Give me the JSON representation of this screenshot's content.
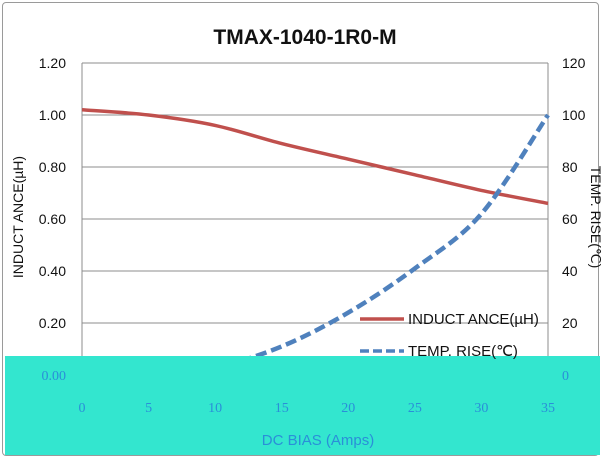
{
  "chart_data": {
    "type": "line",
    "title": "TMAX-1040-1R0-M",
    "xlabel": "DC BIAS (Amps)",
    "ylabel": "INDUCT ANCE(µH)",
    "y2label": "TEMP. RISE(℃)",
    "xlim": [
      0,
      35
    ],
    "ylim": [
      0,
      1.2
    ],
    "y2lim": [
      0,
      120
    ],
    "x_ticks": [
      "0",
      "5",
      "10",
      "15",
      "20",
      "25",
      "30",
      "35"
    ],
    "y_ticks": [
      "0.00",
      "0.20",
      "0.40",
      "0.60",
      "0.80",
      "1.00",
      "1.20"
    ],
    "y2_ticks": [
      "0",
      "20",
      "40",
      "60",
      "80",
      "100",
      "120"
    ],
    "grid": "horizontal",
    "legend_position": "bottom-right",
    "series": [
      {
        "name": "INDUCT ANCE(µH)",
        "axis": "left",
        "color": "#c0504d",
        "style": "solid",
        "x": [
          0,
          5,
          10,
          15,
          20,
          25,
          30,
          35
        ],
        "y": [
          1.02,
          1.0,
          0.96,
          0.89,
          0.83,
          0.77,
          0.71,
          0.66
        ]
      },
      {
        "name": "TEMP. RISE(℃)",
        "axis": "right",
        "color": "#4f81bd",
        "style": "dashed",
        "x": [
          0,
          5,
          10,
          15,
          20,
          25,
          30,
          35
        ],
        "y": [
          0,
          0.5,
          3,
          11,
          24,
          41,
          62,
          100
        ]
      }
    ]
  }
}
